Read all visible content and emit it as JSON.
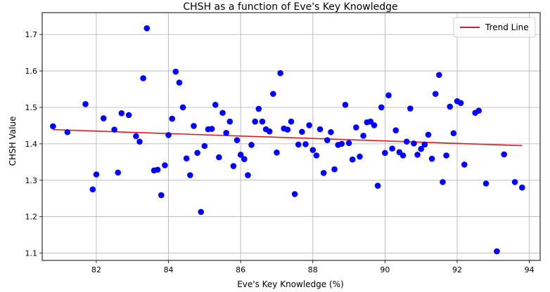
{
  "chart_data": {
    "type": "scatter",
    "title": "CHSH as a function of Eve's Key Knowledge",
    "xlabel": "Eve's Key Knowledge (%)",
    "ylabel": "CHSH Value",
    "xlim": [
      80.5,
      94.3
    ],
    "ylim": [
      1.08,
      1.76
    ],
    "xticks": [
      82,
      84,
      86,
      88,
      90,
      92,
      94
    ],
    "yticks": [
      1.1,
      1.2,
      1.3,
      1.4,
      1.5,
      1.6,
      1.7
    ],
    "grid": true,
    "legend_position": "top-right",
    "colors": {
      "points": "#0000ff",
      "trend": "#e31a1c",
      "grid": "#b0b0b0",
      "axes": "#000000"
    },
    "series": [
      {
        "type": "scatter",
        "points": [
          [
            80.8,
            1.448
          ],
          [
            81.2,
            1.432
          ],
          [
            81.7,
            1.509
          ],
          [
            81.9,
            1.275
          ],
          [
            82.0,
            1.316
          ],
          [
            82.2,
            1.47
          ],
          [
            82.5,
            1.439
          ],
          [
            82.6,
            1.321
          ],
          [
            82.7,
            1.484
          ],
          [
            82.9,
            1.479
          ],
          [
            83.1,
            1.421
          ],
          [
            83.2,
            1.406
          ],
          [
            83.3,
            1.58
          ],
          [
            83.4,
            1.717
          ],
          [
            83.6,
            1.327
          ],
          [
            83.7,
            1.329
          ],
          [
            83.8,
            1.259
          ],
          [
            83.9,
            1.341
          ],
          [
            84.0,
            1.424
          ],
          [
            84.1,
            1.469
          ],
          [
            84.2,
            1.598
          ],
          [
            84.3,
            1.568
          ],
          [
            84.4,
            1.5
          ],
          [
            84.5,
            1.36
          ],
          [
            84.6,
            1.314
          ],
          [
            84.7,
            1.449
          ],
          [
            84.8,
            1.375
          ],
          [
            84.9,
            1.213
          ],
          [
            85.0,
            1.394
          ],
          [
            85.1,
            1.44
          ],
          [
            85.2,
            1.441
          ],
          [
            85.3,
            1.507
          ],
          [
            85.4,
            1.363
          ],
          [
            85.5,
            1.485
          ],
          [
            85.6,
            1.43
          ],
          [
            85.7,
            1.461
          ],
          [
            85.8,
            1.339
          ],
          [
            85.9,
            1.41
          ],
          [
            86.0,
            1.37
          ],
          [
            86.1,
            1.358
          ],
          [
            86.2,
            1.314
          ],
          [
            86.3,
            1.397
          ],
          [
            86.4,
            1.461
          ],
          [
            86.5,
            1.496
          ],
          [
            86.6,
            1.461
          ],
          [
            86.7,
            1.44
          ],
          [
            86.8,
            1.434
          ],
          [
            86.9,
            1.537
          ],
          [
            87.0,
            1.376
          ],
          [
            87.1,
            1.594
          ],
          [
            87.2,
            1.442
          ],
          [
            87.3,
            1.439
          ],
          [
            87.4,
            1.461
          ],
          [
            87.5,
            1.262
          ],
          [
            87.6,
            1.398
          ],
          [
            87.7,
            1.433
          ],
          [
            87.8,
            1.399
          ],
          [
            87.9,
            1.451
          ],
          [
            88.0,
            1.383
          ],
          [
            88.1,
            1.368
          ],
          [
            88.2,
            1.44
          ],
          [
            88.3,
            1.32
          ],
          [
            88.4,
            1.41
          ],
          [
            88.5,
            1.432
          ],
          [
            88.6,
            1.33
          ],
          [
            88.7,
            1.397
          ],
          [
            88.8,
            1.4
          ],
          [
            88.9,
            1.507
          ],
          [
            89.0,
            1.402
          ],
          [
            89.1,
            1.357
          ],
          [
            89.2,
            1.445
          ],
          [
            89.3,
            1.365
          ],
          [
            89.4,
            1.422
          ],
          [
            89.5,
            1.459
          ],
          [
            89.6,
            1.461
          ],
          [
            89.7,
            1.451
          ],
          [
            89.8,
            1.285
          ],
          [
            89.9,
            1.5
          ],
          [
            90.0,
            1.375
          ],
          [
            90.1,
            1.533
          ],
          [
            90.2,
            1.387
          ],
          [
            90.3,
            1.437
          ],
          [
            90.4,
            1.377
          ],
          [
            90.5,
            1.368
          ],
          [
            90.6,
            1.406
          ],
          [
            90.7,
            1.497
          ],
          [
            90.8,
            1.401
          ],
          [
            90.9,
            1.37
          ],
          [
            91.0,
            1.386
          ],
          [
            91.1,
            1.398
          ],
          [
            91.2,
            1.425
          ],
          [
            91.3,
            1.359
          ],
          [
            91.4,
            1.537
          ],
          [
            91.5,
            1.589
          ],
          [
            91.6,
            1.295
          ],
          [
            91.7,
            1.368
          ],
          [
            91.8,
            1.502
          ],
          [
            91.9,
            1.429
          ],
          [
            92.0,
            1.517
          ],
          [
            92.1,
            1.512
          ],
          [
            92.2,
            1.343
          ],
          [
            92.5,
            1.485
          ],
          [
            92.6,
            1.491
          ],
          [
            92.8,
            1.291
          ],
          [
            93.1,
            1.105
          ],
          [
            93.3,
            1.371
          ],
          [
            93.6,
            1.295
          ],
          [
            93.8,
            1.28
          ]
        ]
      },
      {
        "type": "line",
        "name": "Trend Line",
        "points": [
          [
            80.8,
            1.439
          ],
          [
            93.8,
            1.395
          ]
        ]
      }
    ]
  }
}
